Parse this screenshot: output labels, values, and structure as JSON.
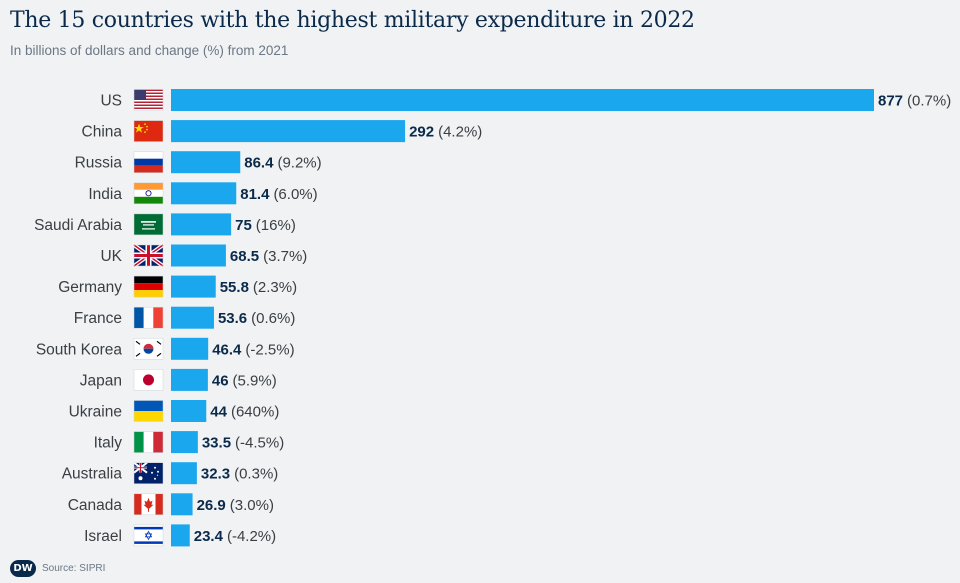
{
  "header": {
    "title": "The 15 countries with the highest military expenditure in 2022",
    "subtitle": "In billions of dollars and change (%) from 2021"
  },
  "footer": {
    "logo_text": "DW",
    "source": "Source: SIPRI"
  },
  "colors": {
    "bar": "#1aa7ee",
    "background": "#f0f2f4",
    "value_text": "#0b2a4a"
  },
  "chart_data": {
    "type": "bar",
    "orientation": "horizontal",
    "title": "The 15 countries with the highest military expenditure in 2022",
    "subtitle": "In billions of dollars and change (%) from 2021",
    "xlabel": "",
    "ylabel": "",
    "xlim": [
      0,
      877
    ],
    "grid": false,
    "legend": "none",
    "categories": [
      "US",
      "China",
      "Russia",
      "India",
      "Saudi Arabia",
      "UK",
      "Germany",
      "France",
      "South Korea",
      "Japan",
      "Ukraine",
      "Italy",
      "Australia",
      "Canada",
      "Israel"
    ],
    "values": [
      877,
      292,
      86.4,
      81.4,
      75,
      68.5,
      55.8,
      53.6,
      46.4,
      46,
      44,
      33.5,
      32.3,
      26.9,
      23.4
    ],
    "value_labels": [
      "877",
      "292",
      "86.4",
      "81.4",
      "75",
      "68.5",
      "55.8",
      "53.6",
      "46.4",
      "46",
      "44",
      "33.5",
      "32.3",
      "26.9",
      "23.4"
    ],
    "change_labels": [
      "(0.7%)",
      "(4.2%)",
      "(9.2%)",
      "(6.0%)",
      "(16%)",
      "(3.7%)",
      "(2.3%)",
      "(0.6%)",
      "(-2.5%)",
      "(5.9%)",
      "(640%)",
      "(-4.5%)",
      "(0.3%)",
      "(3.0%)",
      "(-4.2%)"
    ],
    "flag_icons": [
      "flag-us-icon",
      "flag-china-icon",
      "flag-russia-icon",
      "flag-india-icon",
      "flag-saudi-arabia-icon",
      "flag-uk-icon",
      "flag-germany-icon",
      "flag-france-icon",
      "flag-south-korea-icon",
      "flag-japan-icon",
      "flag-ukraine-icon",
      "flag-italy-icon",
      "flag-australia-icon",
      "flag-canada-icon",
      "flag-israel-icon"
    ]
  }
}
